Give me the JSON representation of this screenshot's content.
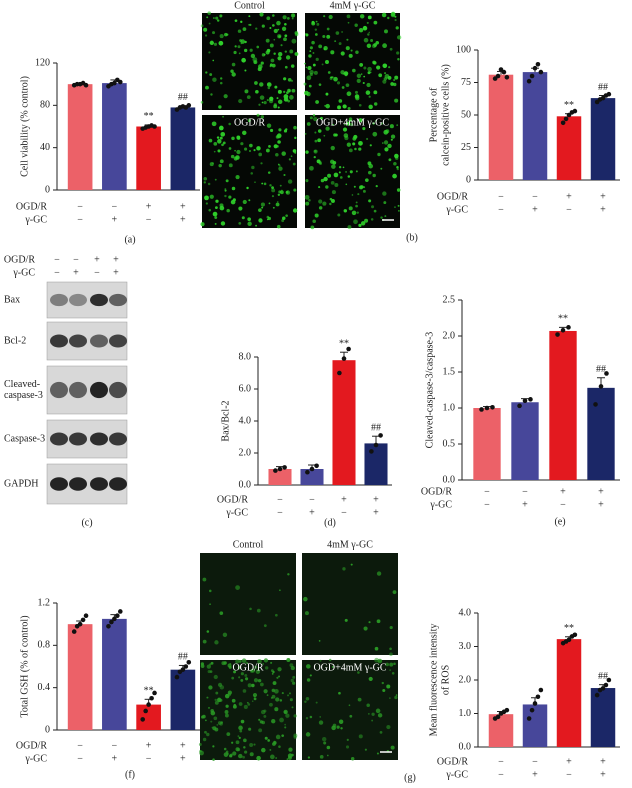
{
  "chart_data": [
    {
      "type": "bar",
      "panel": "(a)",
      "ylabel": [
        "Cell viability (% control)"
      ],
      "values": [
        100,
        101,
        60,
        78
      ],
      "errors": [
        1,
        3,
        1.5,
        1.5
      ],
      "points": [
        [
          99,
          100,
          100,
          101,
          99
        ],
        [
          98,
          100,
          101,
          104,
          102
        ],
        [
          58,
          59,
          60,
          61,
          60
        ],
        [
          76,
          78,
          79,
          78,
          80
        ]
      ],
      "colors": [
        "#ec6168",
        "#47479a",
        "#e3191f",
        "#1b2767"
      ],
      "annotations": [
        null,
        null,
        "**",
        "##"
      ],
      "conditions": [
        {
          "name": "OGD/R",
          "signs": [
            "−",
            "−",
            "+",
            "+"
          ]
        },
        {
          "name": "γ-GC",
          "signs": [
            "−",
            "+",
            "−",
            "+"
          ]
        }
      ],
      "ylim": [
        0,
        120
      ],
      "yticks": [
        0,
        40,
        80,
        120
      ]
    },
    {
      "type": "bar",
      "panel": "(b)",
      "ylabel": [
        "Percentage of",
        "calcein-positive cells (%)"
      ],
      "values": [
        81,
        83,
        49,
        63
      ],
      "errors": [
        2.5,
        3,
        2,
        2
      ],
      "points": [
        [
          78,
          80,
          85,
          83,
          79
        ],
        [
          76,
          80,
          86,
          89,
          83
        ],
        [
          44,
          47,
          50,
          52,
          53
        ],
        [
          60,
          62,
          63,
          65,
          66
        ]
      ],
      "colors": [
        "#ec6168",
        "#47479a",
        "#e3191f",
        "#1b2767"
      ],
      "annotations": [
        null,
        null,
        "**",
        "##"
      ],
      "conditions": [
        {
          "name": "OGD/R",
          "signs": [
            "−",
            "−",
            "+",
            "+"
          ]
        },
        {
          "name": "γ-GC",
          "signs": [
            "−",
            "+",
            "−",
            "+"
          ]
        }
      ],
      "ylim": [
        0,
        100
      ],
      "yticks": [
        0,
        25,
        50,
        75,
        100
      ]
    },
    {
      "type": "bar",
      "panel": "(d)",
      "ylabel": [
        "Bax/Bcl-2"
      ],
      "values": [
        1.0,
        1.0,
        7.8,
        2.6
      ],
      "errors": [
        0.15,
        0.25,
        0.5,
        0.45
      ],
      "points": [
        [
          0.9,
          1.0,
          1.1
        ],
        [
          0.8,
          1.0,
          1.2
        ],
        [
          7.0,
          7.9,
          8.5
        ],
        [
          2.1,
          2.5,
          3.1
        ]
      ],
      "colors": [
        "#ec6168",
        "#47479a",
        "#e3191f",
        "#1b2767"
      ],
      "annotations": [
        null,
        null,
        "**",
        "##"
      ],
      "conditions": [
        {
          "name": "OGD/R",
          "signs": [
            "−",
            "−",
            "+",
            "+"
          ]
        },
        {
          "name": "γ-GC",
          "signs": [
            "−",
            "+",
            "−",
            "+"
          ]
        }
      ],
      "ylim": [
        0,
        8
      ],
      "yticks": [
        {
          "value": 0,
          "label": "0.0"
        },
        {
          "value": 2,
          "label": "2.0"
        },
        {
          "value": 4,
          "label": "4.0"
        },
        {
          "value": 6,
          "label": "6.0"
        },
        {
          "value": 8,
          "label": "8.0"
        }
      ]
    },
    {
      "type": "bar",
      "panel": "(e)",
      "ylabel": [
        "Cleaved-caspase-3/caspase-3"
      ],
      "values": [
        1.0,
        1.08,
        2.07,
        1.28
      ],
      "errors": [
        0.02,
        0.05,
        0.05,
        0.14
      ],
      "points": [
        [
          0.98,
          1.0,
          1.01
        ],
        [
          1.03,
          1.1,
          1.12
        ],
        [
          2.02,
          2.08,
          2.12
        ],
        [
          1.05,
          1.3,
          1.48
        ]
      ],
      "colors": [
        "#ec6168",
        "#47479a",
        "#e3191f",
        "#1b2767"
      ],
      "annotations": [
        null,
        null,
        "**",
        "##"
      ],
      "conditions": [
        {
          "name": "OGD/R",
          "signs": [
            "−",
            "−",
            "+",
            "+"
          ]
        },
        {
          "name": "γ-GC",
          "signs": [
            "−",
            "+",
            "−",
            "+"
          ]
        }
      ],
      "ylim": [
        0,
        2.5
      ],
      "yticks": [
        {
          "value": 0,
          "label": "0.0"
        },
        0.5,
        {
          "value": 1,
          "label": "1.0"
        },
        1.5,
        {
          "value": 2,
          "label": "2.0"
        },
        2.5
      ]
    },
    {
      "type": "bar",
      "panel": "(f)",
      "ylabel": [
        "Total GSH (% of control)"
      ],
      "values": [
        1.0,
        1.05,
        0.24,
        0.57
      ],
      "errors": [
        0.03,
        0.04,
        0.05,
        0.04
      ],
      "points": [
        [
          0.93,
          0.98,
          1.0,
          1.04,
          1.08
        ],
        [
          0.98,
          1.02,
          1.05,
          1.08,
          1.12
        ],
        [
          0.1,
          0.18,
          0.24,
          0.3,
          0.35
        ],
        [
          0.5,
          0.55,
          0.57,
          0.6,
          0.64
        ]
      ],
      "colors": [
        "#ec6168",
        "#47479a",
        "#e3191f",
        "#1b2767"
      ],
      "annotations": [
        null,
        null,
        "**",
        "##"
      ],
      "conditions": [
        {
          "name": "OGD/R",
          "signs": [
            "−",
            "−",
            "+",
            "+"
          ]
        },
        {
          "name": "γ-GC",
          "signs": [
            "−",
            "+",
            "−",
            "+"
          ]
        }
      ],
      "ylim": [
        0,
        1.2
      ],
      "yticks": [
        0,
        0.4,
        0.8,
        1.2
      ]
    },
    {
      "type": "bar",
      "panel": "(g)",
      "ylabel": [
        "Mean fluorescence intensity",
        "of ROS"
      ],
      "values": [
        0.98,
        1.27,
        3.22,
        1.76
      ],
      "errors": [
        0.08,
        0.2,
        0.07,
        0.1
      ],
      "points": [
        [
          0.85,
          0.9,
          1.0,
          1.05,
          1.1
        ],
        [
          0.85,
          1.1,
          1.3,
          1.5,
          1.7
        ],
        [
          3.1,
          3.15,
          3.2,
          3.3,
          3.35
        ],
        [
          1.55,
          1.7,
          1.75,
          1.85,
          2.0
        ]
      ],
      "colors": [
        "#ec6168",
        "#47479a",
        "#e3191f",
        "#1b2767"
      ],
      "annotations": [
        null,
        null,
        "**",
        "##"
      ],
      "conditions": [
        {
          "name": "OGD/R",
          "signs": [
            "−",
            "−",
            "+",
            "+"
          ]
        },
        {
          "name": "γ-GC",
          "signs": [
            "−",
            "+",
            "−",
            "+"
          ]
        }
      ],
      "ylim": [
        0,
        4
      ],
      "yticks": [
        {
          "value": 0,
          "label": "0.0"
        },
        {
          "value": 1,
          "label": "1.0"
        },
        {
          "value": 2,
          "label": "2.0"
        },
        {
          "value": 3,
          "label": "3.0"
        },
        {
          "value": 4,
          "label": "4.0"
        }
      ]
    }
  ],
  "micrographs": [
    {
      "labels": [
        "Control",
        "4mM γ-GC",
        "OGD/R",
        "OGD+4mM γ-GC"
      ]
    },
    {
      "labels": [
        "Control",
        "4mM γ-GC",
        "OGD/R",
        "OGD+4mM γ-GC"
      ]
    }
  ],
  "blot": {
    "panel": "(c)",
    "conditions": [
      {
        "name": "OGD/R",
        "signs": [
          "−",
          "−",
          "+",
          "+"
        ]
      },
      {
        "name": "γ-GC",
        "signs": [
          "−",
          "+",
          "−",
          "+"
        ]
      }
    ],
    "bands": [
      [
        "Bax"
      ],
      [
        "Bcl-2"
      ],
      [
        "Cleaved-",
        "caspase-3"
      ],
      [
        "Caspase-3"
      ],
      [
        "GAPDH"
      ]
    ]
  }
}
